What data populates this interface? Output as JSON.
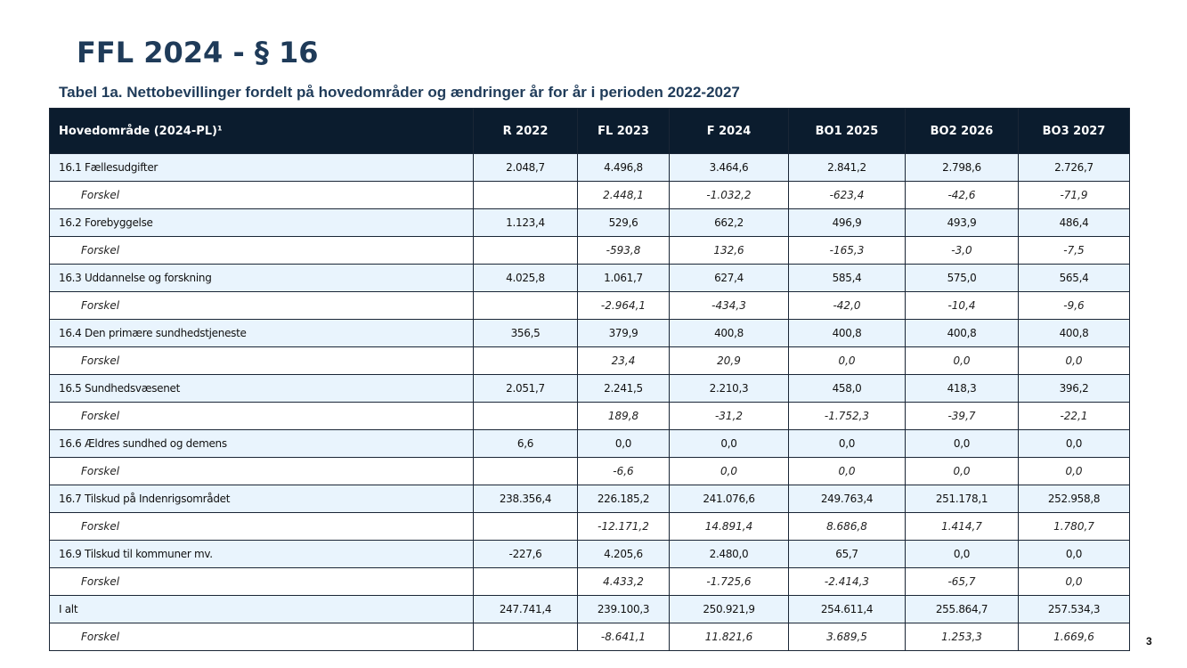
{
  "title": "FFL 2024 - § 16",
  "subtitle": "Tabel 1a. Nettobevillinger fordelt på hovedområder og ændringer år for år i perioden 2022-2027",
  "page_number": "3",
  "colors": {
    "header_bg": "#0b1c2e",
    "row_highlight": "#e9f4fd",
    "title": "#1f3b59"
  },
  "table": {
    "headers": [
      "Hovedområde (2024-PL)¹",
      "R 2022",
      "FL 2023",
      "F 2024",
      "BO1 2025",
      "BO2 2026",
      "BO3 2027"
    ],
    "rows": [
      {
        "label": "16.1 Fællesudgifter",
        "cells": [
          "2.048,7",
          "4.496,8",
          "3.464,6",
          "2.841,2",
          "2.798,6",
          "2.726,7"
        ]
      },
      {
        "label": "Forskel",
        "cells": [
          "",
          "2.448,1",
          "-1.032,2",
          "-623,4",
          "-42,6",
          "-71,9"
        ]
      },
      {
        "label": "16.2 Forebyggelse",
        "cells": [
          "1.123,4",
          "529,6",
          "662,2",
          "496,9",
          "493,9",
          "486,4"
        ]
      },
      {
        "label": "Forskel",
        "cells": [
          "",
          "-593,8",
          "132,6",
          "-165,3",
          "-3,0",
          "-7,5"
        ]
      },
      {
        "label": "16.3 Uddannelse og forskning",
        "cells": [
          "4.025,8",
          "1.061,7",
          "627,4",
          "585,4",
          "575,0",
          "565,4"
        ]
      },
      {
        "label": "Forskel",
        "cells": [
          "",
          "-2.964,1",
          "-434,3",
          "-42,0",
          "-10,4",
          "-9,6"
        ]
      },
      {
        "label": "16.4 Den primære sundhedstjeneste",
        "cells": [
          "356,5",
          "379,9",
          "400,8",
          "400,8",
          "400,8",
          "400,8"
        ]
      },
      {
        "label": "Forskel",
        "cells": [
          "",
          "23,4",
          "20,9",
          "0,0",
          "0,0",
          "0,0"
        ]
      },
      {
        "label": "16.5 Sundhedsvæsenet",
        "cells": [
          "2.051,7",
          "2.241,5",
          "2.210,3",
          "458,0",
          "418,3",
          "396,2"
        ]
      },
      {
        "label": "Forskel",
        "cells": [
          "",
          "189,8",
          "-31,2",
          "-1.752,3",
          "-39,7",
          "-22,1"
        ]
      },
      {
        "label": "16.6 Ældres sundhed og demens",
        "cells": [
          "6,6",
          "0,0",
          "0,0",
          "0,0",
          "0,0",
          "0,0"
        ]
      },
      {
        "label": "Forskel",
        "cells": [
          "",
          "-6,6",
          "0,0",
          "0,0",
          "0,0",
          "0,0"
        ]
      },
      {
        "label": "16.7 Tilskud på Indenrigsområdet",
        "cells": [
          "238.356,4",
          "226.185,2",
          "241.076,6",
          "249.763,4",
          "251.178,1",
          "252.958,8"
        ]
      },
      {
        "label": "Forskel",
        "cells": [
          "",
          "-12.171,2",
          "14.891,4",
          "8.686,8",
          "1.414,7",
          "1.780,7"
        ]
      },
      {
        "label": "16.9 Tilskud til kommuner mv.",
        "cells": [
          "-227,6",
          "4.205,6",
          "2.480,0",
          "65,7",
          "0,0",
          "0,0"
        ]
      },
      {
        "label": "Forskel",
        "cells": [
          "",
          "4.433,2",
          "-1.725,6",
          "-2.414,3",
          "-65,7",
          "0,0"
        ]
      },
      {
        "label": "I alt",
        "cells": [
          "247.741,4",
          "239.100,3",
          "250.921,9",
          "254.611,4",
          "255.864,7",
          "257.534,3"
        ]
      },
      {
        "label": "Forskel",
        "cells": [
          "",
          "-8.641,1",
          "11.821,6",
          "3.689,5",
          "1.253,3",
          "1.669,6"
        ]
      }
    ]
  }
}
